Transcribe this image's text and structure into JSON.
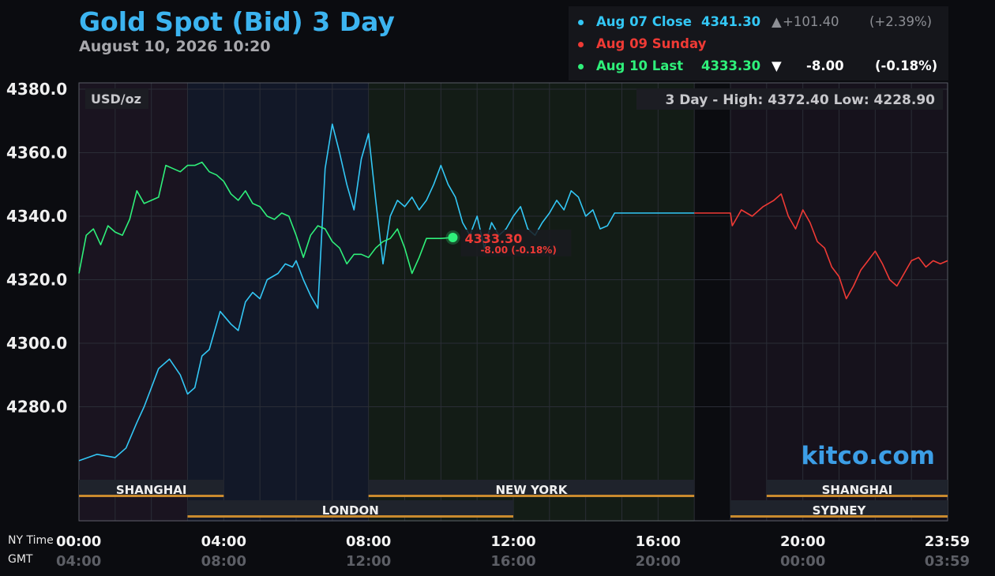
{
  "header": {
    "title": "Gold Spot (Bid) 3 Day",
    "subtitle": "August 10, 2026 10:20"
  },
  "legend": {
    "items": [
      {
        "label": "Aug 07 Close",
        "value": "4341.30",
        "arrow": "▲",
        "change": "+101.40",
        "pct": "(+2.39%)",
        "color": "#33c7f5"
      },
      {
        "label": "Aug 09 Sunday",
        "value": "",
        "arrow": "",
        "change": "",
        "pct": "",
        "color": "#ef3a35"
      },
      {
        "label": "Aug 10 Last",
        "value": "4333.30",
        "arrow": "▼",
        "change": "-8.00",
        "pct": "(-0.18%)",
        "color": "#2ff07a"
      }
    ]
  },
  "chart_data": {
    "type": "line",
    "unit_label": "USD/oz",
    "high_low": "3 Day - High: 4372.40  Low: 4228.90",
    "watermark": "kitco.com",
    "ylim": [
      4258,
      4382
    ],
    "yticks": [
      "4380.0",
      "4360.0",
      "4340.0",
      "4320.0",
      "4300.0",
      "4280.0"
    ],
    "ytick_values": [
      4380,
      4360,
      4340,
      4320,
      4300,
      4280
    ],
    "xlim": [
      0,
      24
    ],
    "x_label_ny": "NY Time",
    "x_label_gmt": "GMT",
    "xticks": [
      {
        "h": 0,
        "ny": "00:00",
        "gmt": "04:00"
      },
      {
        "h": 4,
        "ny": "04:00",
        "gmt": "08:00"
      },
      {
        "h": 8,
        "ny": "08:00",
        "gmt": "12:00"
      },
      {
        "h": 12,
        "ny": "12:00",
        "gmt": "16:00"
      },
      {
        "h": 16,
        "ny": "16:00",
        "gmt": "20:00"
      },
      {
        "h": 20,
        "ny": "20:00",
        "gmt": "00:00"
      },
      {
        "h": 24,
        "ny": "23:59",
        "gmt": "03:59"
      }
    ],
    "sessions": [
      {
        "name": "SHANGHAI",
        "start": 0,
        "end": 4,
        "row": 0
      },
      {
        "name": "NEW YORK",
        "start": 8,
        "end": 17,
        "row": 0
      },
      {
        "name": "SHANGHAI",
        "start": 19,
        "end": 24,
        "row": 0
      },
      {
        "name": "LONDON",
        "start": 3,
        "end": 12,
        "row": 1
      },
      {
        "name": "SYDNEY",
        "start": 18,
        "end": 24,
        "row": 1
      }
    ],
    "last_point": {
      "x": 10.33,
      "y": 4333.3,
      "label": "4333.30",
      "change": "-8.00 (-0.18%)"
    },
    "series": [
      {
        "name": "Aug 07 Close",
        "color": "#33c7f5",
        "x": [
          0,
          0.5,
          1,
          1.3,
          1.6,
          1.8,
          2.0,
          2.2,
          2.5,
          2.8,
          3.0,
          3.2,
          3.4,
          3.6,
          3.9,
          4.2,
          4.4,
          4.6,
          4.8,
          5.0,
          5.2,
          5.5,
          5.7,
          5.9,
          6.0,
          6.2,
          6.4,
          6.6,
          6.8,
          7.0,
          7.2,
          7.4,
          7.6,
          7.8,
          8.0,
          8.2,
          8.4,
          8.6,
          8.8,
          9.0,
          9.2,
          9.4,
          9.6,
          9.8,
          10.0,
          10.2,
          10.4,
          10.6,
          10.8,
          11.0,
          11.2,
          11.4,
          11.6,
          11.8,
          12.0,
          12.2,
          12.4,
          12.6,
          12.8,
          13.0,
          13.2,
          13.4,
          13.6,
          13.8,
          14.0,
          14.2,
          14.4,
          14.6,
          14.8,
          15.0,
          15.2,
          15.4,
          15.6,
          15.8,
          16.0,
          16.2,
          16.4,
          16.6,
          16.8,
          17.0
        ],
        "y": [
          4263,
          4265,
          4264,
          4267,
          4275,
          4280,
          4286,
          4292,
          4295,
          4290,
          4284,
          4286,
          4296,
          4298,
          4310,
          4306,
          4304,
          4313,
          4316,
          4314,
          4320,
          4322,
          4325,
          4324,
          4326,
          4320,
          4315,
          4311,
          4355,
          4369,
          4360,
          4350,
          4342,
          4358,
          4366,
          4345,
          4325,
          4340,
          4345,
          4343,
          4346,
          4342,
          4345,
          4350,
          4356,
          4350,
          4346,
          4338,
          4334,
          4340,
          4330,
          4338,
          4334,
          4336,
          4340,
          4343,
          4336,
          4334,
          4338,
          4341,
          4345,
          4342,
          4348,
          4346,
          4340,
          4342,
          4336,
          4337,
          4341,
          4341,
          4341,
          4341,
          4341,
          4341,
          4341,
          4341,
          4341,
          4341,
          4341,
          4341
        ]
      },
      {
        "name": "Aug 09 Sunday",
        "color": "#ef3a35",
        "x": [
          17.0,
          18.0,
          18.05,
          18.3,
          18.6,
          18.9,
          19.2,
          19.4,
          19.6,
          19.8,
          20.0,
          20.2,
          20.4,
          20.6,
          20.8,
          21.0,
          21.2,
          21.4,
          21.6,
          21.8,
          22.0,
          22.2,
          22.4,
          22.6,
          22.8,
          23.0,
          23.2,
          23.4,
          23.6,
          23.8,
          24.0
        ],
        "y": [
          4341,
          4341,
          4337,
          4342,
          4340,
          4343,
          4345,
          4347,
          4340,
          4336,
          4342,
          4338,
          4332,
          4330,
          4324,
          4321,
          4314,
          4318,
          4323,
          4326,
          4329,
          4325,
          4320,
          4318,
          4322,
          4326,
          4327,
          4324,
          4326,
          4325,
          4326
        ]
      },
      {
        "name": "Aug 10 Last",
        "color": "#2ff07a",
        "x": [
          0,
          0.2,
          0.4,
          0.6,
          0.8,
          1.0,
          1.2,
          1.4,
          1.6,
          1.8,
          2.0,
          2.2,
          2.4,
          2.6,
          2.8,
          3.0,
          3.2,
          3.4,
          3.6,
          3.8,
          4.0,
          4.2,
          4.4,
          4.6,
          4.8,
          5.0,
          5.2,
          5.4,
          5.6,
          5.8,
          6.0,
          6.2,
          6.4,
          6.6,
          6.8,
          7.0,
          7.2,
          7.4,
          7.6,
          7.8,
          8.0,
          8.2,
          8.4,
          8.6,
          8.8,
          9.0,
          9.2,
          9.4,
          9.6,
          9.8,
          10.0,
          10.33
        ],
        "y": [
          4322,
          4334,
          4336,
          4331,
          4337,
          4335,
          4334,
          4339,
          4348,
          4344,
          4345,
          4346,
          4356,
          4355,
          4354,
          4356,
          4356,
          4357,
          4354,
          4353,
          4351,
          4347,
          4345,
          4348,
          4344,
          4343,
          4340,
          4339,
          4341,
          4340,
          4334,
          4327,
          4334,
          4337,
          4336,
          4332,
          4330,
          4325,
          4328,
          4328,
          4327,
          4330,
          4332,
          4333,
          4336,
          4330,
          4322,
          4327,
          4333,
          4333,
          4333,
          4333.3
        ]
      }
    ]
  }
}
